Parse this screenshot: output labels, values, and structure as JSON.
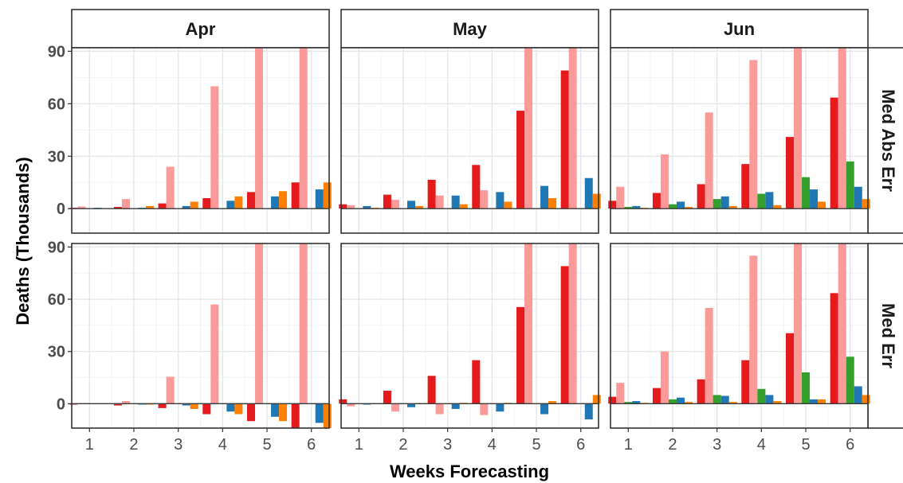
{
  "chart_data": {
    "type": "bar",
    "xlabel": "Weeks Forecasting",
    "ylabel": "Deaths (Thousands)",
    "x": [
      1,
      2,
      3,
      4,
      5,
      6
    ],
    "ylim": [
      -14,
      92
    ],
    "yticks": [
      0,
      30,
      60,
      90
    ],
    "grid": true,
    "columns": [
      "Apr",
      "May",
      "Jun"
    ],
    "rows": [
      "Med Abs Err",
      "Med Err"
    ],
    "series_colors": [
      "#e41a1c",
      "#fb9a99",
      "#33a02c",
      "#1f78b4",
      "#ff7f00"
    ],
    "panels": [
      {
        "column": "Apr",
        "row": "Med Abs Err",
        "series": [
          {
            "values": [
              0.5,
              1.0,
              3.0,
              6.0,
              9.5,
              15
            ]
          },
          {
            "values": [
              1.2,
              5.5,
              24,
              70,
              92,
              92
            ]
          },
          {
            "values": [
              null,
              null,
              null,
              null,
              null,
              null
            ]
          },
          {
            "values": [
              0.5,
              0.5,
              1.5,
              4.5,
              7,
              11
            ]
          },
          {
            "values": [
              0.3,
              1.5,
              4.0,
              7.0,
              10,
              15
            ]
          }
        ]
      },
      {
        "column": "May",
        "row": "Med Abs Err",
        "series": [
          {
            "values": [
              2.5,
              8.0,
              16.5,
              25,
              56,
              79
            ]
          },
          {
            "values": [
              2.0,
              5.0,
              7.5,
              10.5,
              92,
              92
            ]
          },
          {
            "values": [
              null,
              null,
              null,
              null,
              null,
              null
            ]
          },
          {
            "values": [
              1.5,
              4.5,
              7.5,
              9.5,
              13,
              17.5
            ]
          },
          {
            "values": [
              0.5,
              1.5,
              2.5,
              4.0,
              6.0,
              8.5
            ]
          }
        ]
      },
      {
        "column": "Jun",
        "row": "Med Abs Err",
        "series": [
          {
            "values": [
              4.5,
              9.0,
              14,
              25.5,
              41,
              63.5
            ]
          },
          {
            "values": [
              12.5,
              31,
              55,
              85,
              92,
              92
            ]
          },
          {
            "values": [
              1.0,
              2.5,
              5.5,
              8.5,
              18,
              27
            ]
          },
          {
            "values": [
              1.5,
              4.0,
              7.0,
              9.5,
              11,
              12.5
            ]
          },
          {
            "values": [
              0.5,
              1.0,
              1.5,
              2.0,
              4.0,
              5.5
            ]
          }
        ]
      },
      {
        "column": "Apr",
        "row": "Med Err",
        "series": [
          {
            "values": [
              -0.5,
              -1.0,
              -2.5,
              -6.0,
              -10,
              -15
            ]
          },
          {
            "values": [
              0.3,
              1.5,
              15.5,
              57,
              92,
              92
            ]
          },
          {
            "values": [
              null,
              null,
              null,
              null,
              null,
              null
            ]
          },
          {
            "values": [
              -0.3,
              -0.5,
              -1.0,
              -4.5,
              -7.5,
              -11
            ]
          },
          {
            "values": [
              -0.3,
              -0.5,
              -3.0,
              -6.0,
              -10,
              -15.5
            ]
          }
        ]
      },
      {
        "column": "May",
        "row": "Med Err",
        "series": [
          {
            "values": [
              2.5,
              7.5,
              16,
              25,
              55.5,
              79
            ]
          },
          {
            "values": [
              -1.5,
              -4.5,
              -6.0,
              -6.5,
              92,
              92
            ]
          },
          {
            "values": [
              null,
              null,
              null,
              null,
              null,
              null
            ]
          },
          {
            "values": [
              -0.5,
              -2.0,
              -3.0,
              -4.5,
              -6.0,
              -9.0
            ]
          },
          {
            "values": [
              0.3,
              0.3,
              0.5,
              0.5,
              1.5,
              5.0
            ]
          }
        ]
      },
      {
        "column": "Jun",
        "row": "Med Err",
        "series": [
          {
            "values": [
              4.0,
              9.0,
              14,
              25,
              40.5,
              63.5
            ]
          },
          {
            "values": [
              12,
              30,
              55,
              85,
              92,
              92
            ]
          },
          {
            "values": [
              1.0,
              2.5,
              5.0,
              8.5,
              18,
              27
            ]
          },
          {
            "values": [
              1.5,
              3.5,
              4.5,
              5.0,
              2.5,
              10
            ]
          },
          {
            "values": [
              0.5,
              1.0,
              1.0,
              1.5,
              2.5,
              5.0
            ]
          }
        ]
      }
    ]
  }
}
